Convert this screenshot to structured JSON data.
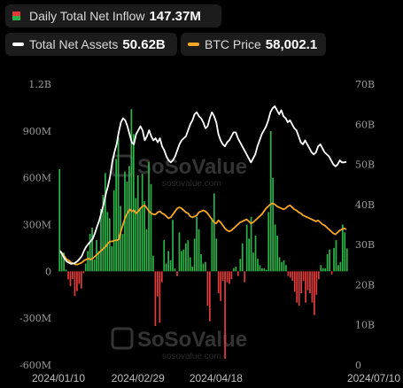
{
  "legend": {
    "inflow": {
      "label": "Daily Total Net Inflow",
      "value": "147.37M",
      "icon": "bar-swatch-icon",
      "up_color": "#2bb34a",
      "down_color": "#e23b3b"
    },
    "assets": {
      "label": "Total Net Assets",
      "value": "50.62B",
      "icon": "white-line-icon",
      "color": "#ffffff"
    },
    "btc": {
      "label": "BTC Price",
      "value": "58,002.1",
      "icon": "orange-line-icon",
      "color": "#f5a623"
    }
  },
  "watermark": {
    "brand": "SoSoValue",
    "site": "sosovalue.com"
  },
  "chart_data": {
    "type": "bar",
    "title": "",
    "xlabel": "",
    "ylabel": "",
    "grid": false,
    "legend_position": "top-left",
    "x_range": [
      "2024-01-10",
      "2024-07-10"
    ],
    "x_ticks": [
      "2024/01/10",
      "2024/02/29",
      "2024/04/18",
      "2024/07/10"
    ],
    "left_axis": {
      "ticks": [
        "1.2B",
        "900M",
        "600M",
        "300M",
        "0",
        "-300M",
        "-600M"
      ],
      "range_millions": [
        -600,
        1200
      ]
    },
    "right_axis": {
      "ticks": [
        "70B",
        "60B",
        "50B",
        "40B",
        "30B",
        "20B",
        "10B",
        "0"
      ],
      "range_billions": [
        0,
        70
      ]
    },
    "series": [
      {
        "name": "Daily Total Net Inflow",
        "kind": "bar",
        "unit": "M USD",
        "values": [
          655,
          125,
          120,
          12,
          -52,
          -95,
          -50,
          -158,
          -126,
          -80,
          -110,
          -12,
          50,
          130,
          240,
          280,
          75,
          200,
          130,
          400,
          490,
          630,
          380,
          340,
          160,
          520,
          720,
          860,
          420,
          240,
          640,
          575,
          675,
          1040,
          880,
          470,
          615,
          400,
          625,
          450,
          270,
          700,
          560,
          100,
          -350,
          -160,
          -330,
          -70,
          200,
          50,
          130,
          70,
          330,
          18,
          -30,
          250,
          130,
          140,
          180,
          200,
          90,
          30,
          210,
          350,
          270,
          110,
          50,
          60,
          -220,
          -320,
          340,
          500,
          210,
          -140,
          -190,
          -60,
          -560,
          -70,
          -80,
          -50,
          20,
          30,
          -30,
          80,
          180,
          -70,
          300,
          210,
          350,
          120,
          230,
          80,
          40,
          20,
          20,
          10,
          380,
          900,
          600,
          300,
          230,
          90,
          60,
          70,
          40,
          -30,
          -40,
          -60,
          -130,
          -200,
          -220,
          -140,
          -60,
          -200,
          -120,
          -140,
          -200,
          -280,
          -150,
          -50,
          40,
          20,
          20,
          110,
          140,
          -20,
          150,
          200,
          40,
          60,
          300,
          250,
          147
        ]
      },
      {
        "name": "Total Net Assets",
        "kind": "line",
        "unit": "B USD",
        "values": [
          28.5,
          27.5,
          26.5,
          25.8,
          25.5,
          25.2,
          25.3,
          25.5,
          25.9,
          26.5,
          27.2,
          28.5,
          29.5,
          30.2,
          30.8,
          31.5,
          32.8,
          34.5,
          36.0,
          38.0,
          40.0,
          42.5,
          44.5,
          47.0,
          50.5,
          53.0,
          55.0,
          58.0,
          60.5,
          61.5,
          61.0,
          59.5,
          57.5,
          55.5,
          55.0,
          57.5,
          58.5,
          59.5,
          58.5,
          56.0,
          57.0,
          58.5,
          57.0,
          56.0,
          56.5,
          55.5,
          56.5,
          54.5,
          53.5,
          52.0,
          51.0,
          50.5,
          51.0,
          52.0,
          53.5,
          55.0,
          56.0,
          56.5,
          57.0,
          58.5,
          60.0,
          61.0,
          62.5,
          63.0,
          62.0,
          61.5,
          60.5,
          59.0,
          59.5,
          61.5,
          63.0,
          62.0,
          60.5,
          57.5,
          56.0,
          55.0,
          54.5,
          55.5,
          56.0,
          57.0,
          58.0,
          58.0,
          56.5,
          55.5,
          54.5,
          53.5,
          52.5,
          51.5,
          50.5,
          51.5,
          52.5,
          54.5,
          56.0,
          57.5,
          58.5,
          59.5,
          61.0,
          63.0,
          64.0,
          64.5,
          63.5,
          62.5,
          63.5,
          62.0,
          61.5,
          60.5,
          61.0,
          60.0,
          59.0,
          58.5,
          57.0,
          55.5,
          55.0,
          56.0,
          55.0,
          54.0,
          53.0,
          52.5,
          53.0,
          54.5,
          55.0,
          54.0,
          53.0,
          52.5,
          52.0,
          51.0,
          50.0,
          49.5,
          50.0,
          51.0,
          50.5,
          50.5,
          50.62
        ]
      },
      {
        "name": "BTC Price",
        "kind": "line",
        "values": [
          46500,
          46000,
          44500,
          43000,
          42500,
          41500,
          41000,
          40500,
          40500,
          41000,
          41500,
          42500,
          43000,
          43500,
          43000,
          43500,
          44500,
          45500,
          46500,
          47500,
          48500,
          49500,
          51000,
          52000,
          52000,
          52500,
          52500,
          53000,
          57000,
          60500,
          64000,
          66000,
          68000,
          67000,
          67500,
          66000,
          67000,
          68500,
          69500,
          70000,
          68500,
          67000,
          66000,
          65500,
          65500,
          66500,
          67000,
          66000,
          65500,
          64500,
          63500,
          64000,
          65500,
          67000,
          68500,
          69000,
          68500,
          67500,
          66500,
          66000,
          64500,
          64000,
          64500,
          65000,
          66500,
          67000,
          67500,
          67000,
          66000,
          64500,
          63000,
          61500,
          61000,
          62500,
          61500,
          60000,
          58500,
          57500,
          57000,
          57500,
          58500,
          59500,
          60500,
          61500,
          62000,
          62500,
          63000,
          62000,
          61000,
          61500,
          62500,
          63500,
          64500,
          65500,
          67000,
          68500,
          69500,
          70500,
          71000,
          70500,
          69500,
          69000,
          68500,
          68000,
          68500,
          69500,
          70000,
          69000,
          68000,
          67500,
          66500,
          66000,
          65000,
          64500,
          64000,
          63500,
          63000,
          62500,
          62000,
          62500,
          61500,
          60500,
          60000,
          59000,
          58000,
          57000,
          56000,
          55500,
          56500,
          57500,
          58000,
          58500,
          58002
        ]
      }
    ]
  }
}
